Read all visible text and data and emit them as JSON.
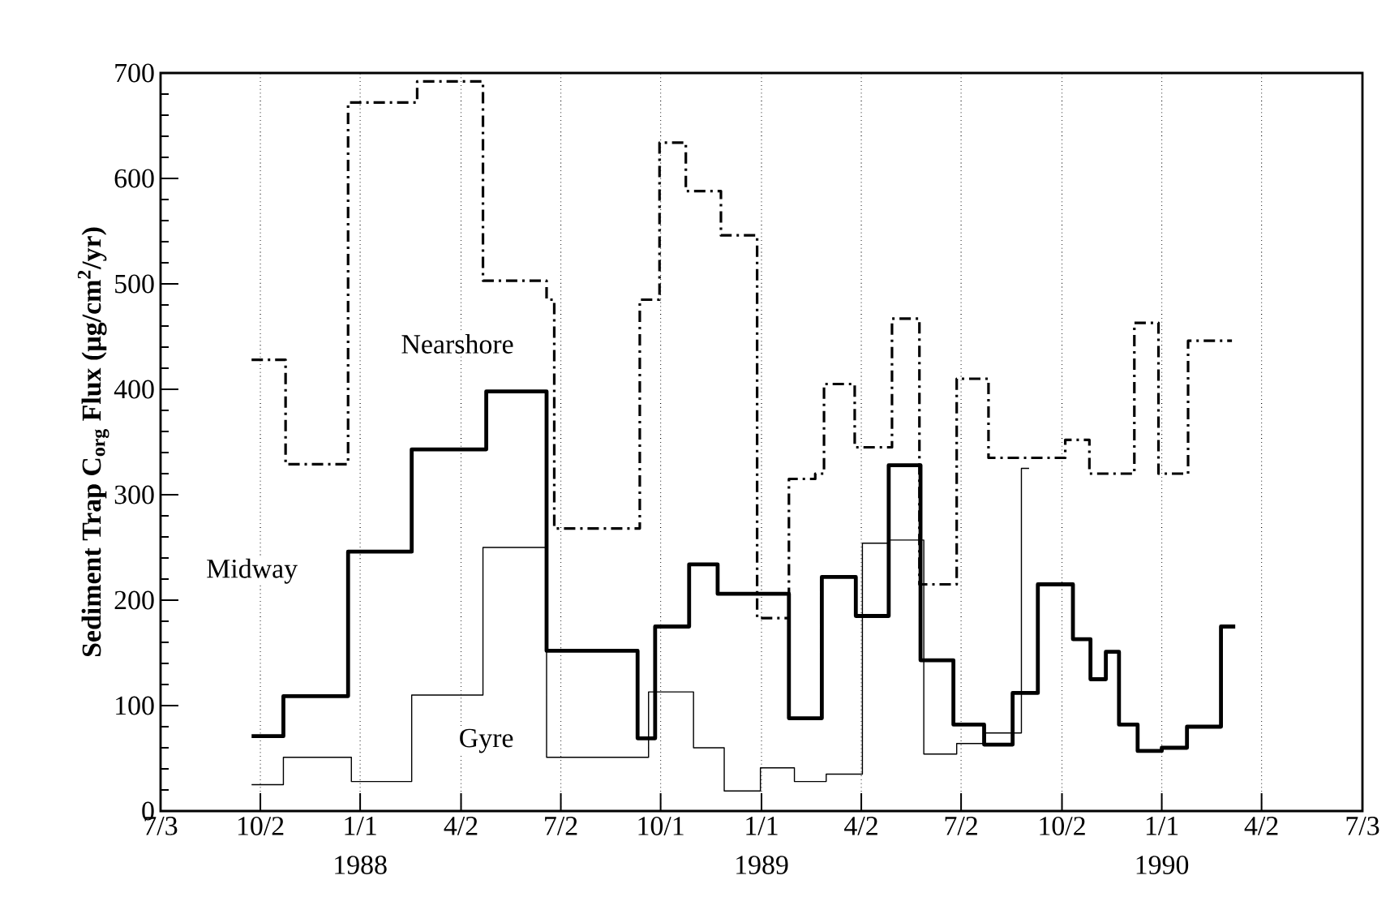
{
  "chart_data": {
    "type": "step",
    "ylabel": "Sediment Trap C$_{org}$ Flux (µg/cm$^{2}$/yr)",
    "xlim": [
      "1987-07-03",
      "1990-07-03"
    ],
    "xticks": [
      {
        "value": "1987-07-03",
        "label": "7/3"
      },
      {
        "value": "1987-10-02",
        "label": "10/2"
      },
      {
        "value": "1988-01-01",
        "label": "1/1"
      },
      {
        "value": "1988-04-02",
        "label": "4/2"
      },
      {
        "value": "1988-07-02",
        "label": "7/2"
      },
      {
        "value": "1988-10-01",
        "label": "10/1"
      },
      {
        "value": "1989-01-01",
        "label": "1/1"
      },
      {
        "value": "1989-04-02",
        "label": "4/2"
      },
      {
        "value": "1989-07-02",
        "label": "7/2"
      },
      {
        "value": "1989-10-02",
        "label": "10/2"
      },
      {
        "value": "1990-01-01",
        "label": "1/1"
      },
      {
        "value": "1990-04-02",
        "label": "4/2"
      },
      {
        "value": "1990-07-03",
        "label": "7/3"
      }
    ],
    "ylim": [
      0,
      700
    ],
    "yticks": [
      0,
      100,
      200,
      300,
      400,
      500,
      600,
      700
    ],
    "grid": "x",
    "annotations": [
      "1988",
      "1989",
      "1990"
    ],
    "series": [
      {
        "name": "Nearshore",
        "color": "#000000",
        "line_style": "dashed",
        "x": [
          "1987-09-24",
          "1987-10-25",
          "1987-12-21",
          "1988-02-22",
          "1988-04-22",
          "1988-06-19",
          "1988-06-26",
          "1988-09-12",
          "1988-09-30",
          "1988-10-24",
          "1988-11-25",
          "1988-12-28",
          "1989-01-26",
          "1989-02-19",
          "1989-02-27",
          "1989-03-27",
          "1989-04-30",
          "1989-05-25",
          "1989-06-28",
          "1989-07-27",
          "1989-10-05",
          "1989-10-27",
          "1989-12-07",
          "1989-12-29",
          "1990-01-25",
          "1990-03-06"
        ],
        "values": [
          428,
          329,
          672,
          692,
          503,
          485,
          268,
          485,
          634,
          588,
          546,
          183,
          315,
          320,
          405,
          345,
          467,
          215,
          410,
          335,
          352,
          320,
          463,
          320,
          446,
          446
        ]
      },
      {
        "name": "Midway",
        "color": "#000000",
        "line_style": "solid",
        "x": [
          "1987-09-24",
          "1987-10-23",
          "1987-12-21",
          "1988-02-17",
          "1988-04-25",
          "1988-06-19",
          "1988-09-10",
          "1988-09-26",
          "1988-10-27",
          "1988-11-22",
          "1989-01-26",
          "1989-02-25",
          "1989-03-28",
          "1989-04-27",
          "1989-05-26",
          "1989-06-25",
          "1989-07-23",
          "1989-08-18",
          "1989-09-10",
          "1989-10-12",
          "1989-10-28",
          "1989-11-11",
          "1989-11-23",
          "1989-12-10",
          "1990-01-01",
          "1990-01-24",
          "1990-02-24",
          "1990-03-09"
        ],
        "values": [
          71,
          109,
          246,
          343,
          398,
          152,
          69,
          175,
          234,
          206,
          88,
          222,
          185,
          328,
          143,
          82,
          63,
          112,
          215,
          163,
          125,
          151,
          82,
          57,
          60,
          80,
          175,
          175
        ]
      },
      {
        "name": "Gyre",
        "color": "#000000",
        "line_style": "solid",
        "x": [
          "1987-09-24",
          "1987-10-23",
          "1987-12-24",
          "1988-02-17",
          "1988-04-22",
          "1988-06-19",
          "1988-09-20",
          "1988-10-31",
          "1988-11-28",
          "1988-12-31",
          "1989-01-31",
          "1989-03-01",
          "1989-04-03",
          "1989-04-27",
          "1989-05-29",
          "1989-06-28",
          "1989-07-24",
          "1989-08-26",
          "1989-09-02"
        ],
        "values": [
          25,
          51,
          28,
          110,
          250,
          51,
          113,
          60,
          19,
          41,
          28,
          35,
          254,
          257,
          54,
          64,
          74,
          325,
          325
        ]
      }
    ]
  }
}
